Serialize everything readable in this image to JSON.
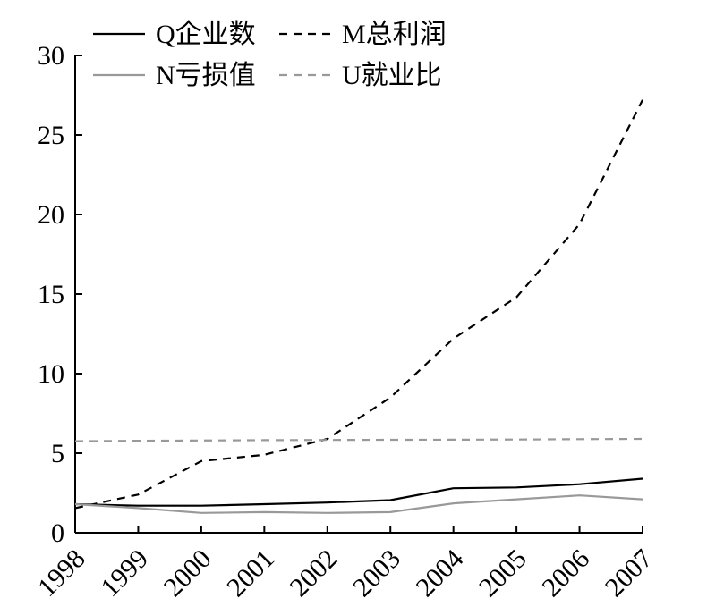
{
  "chart_data": {
    "type": "line",
    "title": "",
    "xlabel": "",
    "ylabel": "",
    "categories": [
      "1998",
      "1999",
      "2000",
      "2001",
      "2002",
      "2003",
      "2004",
      "2005",
      "2006",
      "2007"
    ],
    "ylim": [
      0,
      30
    ],
    "yticks": [
      "0",
      "5",
      "10",
      "15",
      "20",
      "25",
      "30"
    ],
    "grid": false,
    "legend_position": "top-left",
    "series": [
      {
        "name": "Q企业数",
        "color": "#000000",
        "dash": "solid",
        "values": [
          1.8,
          1.7,
          1.7,
          1.8,
          1.9,
          2.05,
          2.8,
          2.85,
          3.05,
          3.4
        ]
      },
      {
        "name": "M总利润",
        "color": "#000000",
        "dash": "dashed",
        "values": [
          1.55,
          2.4,
          4.5,
          4.9,
          5.9,
          8.5,
          12.2,
          14.8,
          19.4,
          27.2
        ]
      },
      {
        "name": "N亏损值",
        "color": "#999999",
        "dash": "solid",
        "values": [
          1.8,
          1.55,
          1.25,
          1.3,
          1.25,
          1.3,
          1.85,
          2.1,
          2.35,
          2.1
        ]
      },
      {
        "name": "U就业比",
        "color": "#999999",
        "dash": "dashed",
        "values": [
          5.75,
          5.78,
          5.8,
          5.82,
          5.83,
          5.84,
          5.85,
          5.86,
          5.88,
          5.9
        ]
      }
    ]
  }
}
